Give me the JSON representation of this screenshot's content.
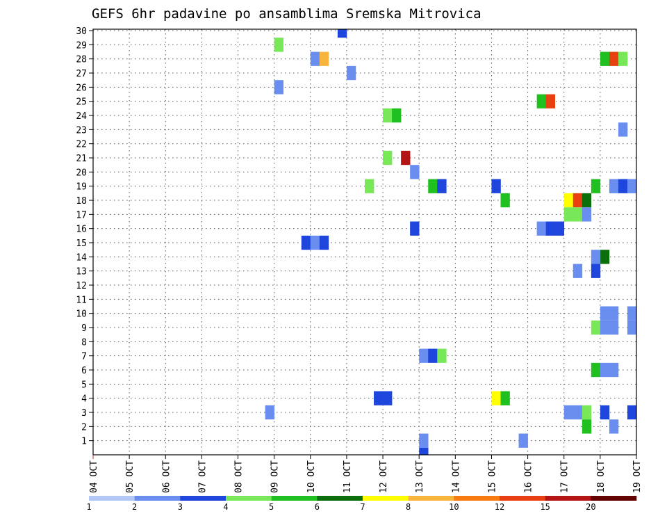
{
  "chart_data": {
    "type": "heatmap",
    "title": "GEFS 6hr padavine po ansamblima Sremska Mitrovica",
    "xlabel": "",
    "ylabel": "",
    "x_tick_labels": [
      "04 OCT",
      "05 OCT",
      "06 OCT",
      "07 OCT",
      "08 OCT",
      "09 OCT",
      "10 OCT",
      "11 OCT",
      "12 OCT",
      "13 OCT",
      "14 OCT",
      "15 OCT",
      "16 OCT",
      "17 OCT",
      "18 OCT",
      "19 OCT"
    ],
    "y_tick_labels": [
      "1",
      "2",
      "3",
      "4",
      "5",
      "6",
      "7",
      "8",
      "9",
      "10",
      "11",
      "12",
      "13",
      "14",
      "15",
      "16",
      "17",
      "18",
      "19",
      "20",
      "21",
      "22",
      "23",
      "24",
      "25",
      "26",
      "27",
      "28",
      "29",
      "30"
    ],
    "xlim": [
      0,
      60
    ],
    "ylim": [
      0,
      30
    ],
    "x_units": "6-hour steps from 04 OCT 00Z",
    "grid": true,
    "colorbar": {
      "labels": [
        "1",
        "2",
        "3",
        "4",
        "5",
        "6",
        "7",
        "8",
        "10",
        "12",
        "15",
        "20"
      ],
      "colors": [
        "#b4c8f8",
        "#6a8ef0",
        "#1e46dc",
        "#78e858",
        "#20c020",
        "#0a6e0a",
        "#ffff00",
        "#f8b43c",
        "#f87c12",
        "#e84010",
        "#b41414",
        "#640000"
      ]
    },
    "cells": [
      {
        "member": 30,
        "step": 27,
        "cls": 2
      },
      {
        "member": 29,
        "step": 20,
        "cls": 3
      },
      {
        "member": 28,
        "step": 24,
        "cls": 1
      },
      {
        "member": 28,
        "step": 25,
        "cls": 7
      },
      {
        "member": 28,
        "step": 56,
        "cls": 4
      },
      {
        "member": 28,
        "step": 57,
        "cls": 9
      },
      {
        "member": 28,
        "step": 58,
        "cls": 3
      },
      {
        "member": 27,
        "step": 28,
        "cls": 1
      },
      {
        "member": 26,
        "step": 20,
        "cls": 1
      },
      {
        "member": 25,
        "step": 49,
        "cls": 4
      },
      {
        "member": 25,
        "step": 50,
        "cls": 9
      },
      {
        "member": 24,
        "step": 32,
        "cls": 3
      },
      {
        "member": 24,
        "step": 33,
        "cls": 4
      },
      {
        "member": 23,
        "step": 58,
        "cls": 1
      },
      {
        "member": 21,
        "step": 32,
        "cls": 3
      },
      {
        "member": 21,
        "step": 34,
        "cls": 10
      },
      {
        "member": 20,
        "step": 35,
        "cls": 1
      },
      {
        "member": 19,
        "step": 30,
        "cls": 3
      },
      {
        "member": 19,
        "step": 37,
        "cls": 4
      },
      {
        "member": 19,
        "step": 38,
        "cls": 2
      },
      {
        "member": 19,
        "step": 44,
        "cls": 2
      },
      {
        "member": 19,
        "step": 55,
        "cls": 4
      },
      {
        "member": 19,
        "step": 57,
        "cls": 1
      },
      {
        "member": 19,
        "step": 58,
        "cls": 2
      },
      {
        "member": 19,
        "step": 59,
        "cls": 1
      },
      {
        "member": 18,
        "step": 45,
        "cls": 4
      },
      {
        "member": 18,
        "step": 52,
        "cls": 6
      },
      {
        "member": 18,
        "step": 53,
        "cls": 9
      },
      {
        "member": 18,
        "step": 54,
        "cls": 5
      },
      {
        "member": 17,
        "step": 52,
        "cls": 3
      },
      {
        "member": 17,
        "step": 53,
        "cls": 3
      },
      {
        "member": 17,
        "step": 54,
        "cls": 1
      },
      {
        "member": 16,
        "step": 35,
        "cls": 2
      },
      {
        "member": 16,
        "step": 49,
        "cls": 1
      },
      {
        "member": 16,
        "step": 50,
        "cls": 2
      },
      {
        "member": 16,
        "step": 51,
        "cls": 2
      },
      {
        "member": 15,
        "step": 23,
        "cls": 2
      },
      {
        "member": 15,
        "step": 24,
        "cls": 1
      },
      {
        "member": 15,
        "step": 25,
        "cls": 2
      },
      {
        "member": 14,
        "step": 56,
        "cls": 5
      },
      {
        "member": 14,
        "step": 55,
        "cls": 1
      },
      {
        "member": 13,
        "step": 53,
        "cls": 1
      },
      {
        "member": 13,
        "step": 55,
        "cls": 2
      },
      {
        "member": 10,
        "step": 56,
        "cls": 1
      },
      {
        "member": 10,
        "step": 57,
        "cls": 1
      },
      {
        "member": 10,
        "step": 59,
        "cls": 1
      },
      {
        "member": 9,
        "step": 55,
        "cls": 3
      },
      {
        "member": 9,
        "step": 56,
        "cls": 1
      },
      {
        "member": 9,
        "step": 57,
        "cls": 1
      },
      {
        "member": 9,
        "step": 59,
        "cls": 1
      },
      {
        "member": 7,
        "step": 36,
        "cls": 1
      },
      {
        "member": 7,
        "step": 37,
        "cls": 2
      },
      {
        "member": 7,
        "step": 38,
        "cls": 3
      },
      {
        "member": 6,
        "step": 55,
        "cls": 4
      },
      {
        "member": 6,
        "step": 56,
        "cls": 1
      },
      {
        "member": 6,
        "step": 57,
        "cls": 1
      },
      {
        "member": 4,
        "step": 31,
        "cls": 2
      },
      {
        "member": 4,
        "step": 32,
        "cls": 2
      },
      {
        "member": 4,
        "step": 44,
        "cls": 6
      },
      {
        "member": 4,
        "step": 45,
        "cls": 4
      },
      {
        "member": 3,
        "step": 19,
        "cls": 1
      },
      {
        "member": 3,
        "step": 52,
        "cls": 1
      },
      {
        "member": 3,
        "step": 53,
        "cls": 1
      },
      {
        "member": 3,
        "step": 54,
        "cls": 3
      },
      {
        "member": 3,
        "step": 56,
        "cls": 2
      },
      {
        "member": 3,
        "step": 59,
        "cls": 2
      },
      {
        "member": 2,
        "step": 54,
        "cls": 4
      },
      {
        "member": 2,
        "step": 57,
        "cls": 1
      },
      {
        "member": 1,
        "step": 36,
        "cls": 1
      },
      {
        "member": 1,
        "step": 47,
        "cls": 1
      },
      {
        "member": 0,
        "step": 36,
        "cls": 2
      }
    ]
  }
}
